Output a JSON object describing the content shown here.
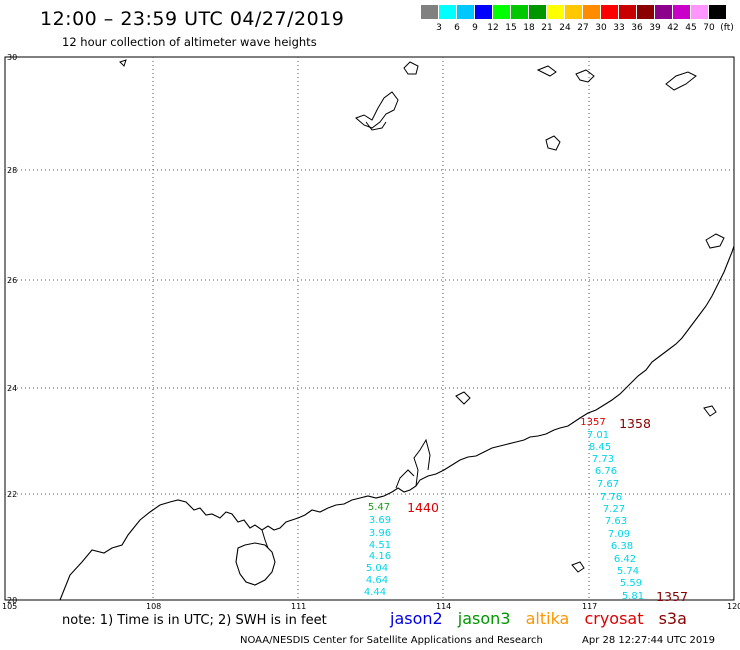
{
  "header": {
    "title": "12:00 – 23:59 UTC 04/27/2019",
    "subtitle": "12 hour collection of altimeter wave heights"
  },
  "scale": {
    "labels": [
      "3",
      "6",
      "9",
      "12",
      "15",
      "18",
      "21",
      "24",
      "27",
      "30",
      "33",
      "36",
      "39",
      "42",
      "45",
      "70",
      "(ft)"
    ],
    "colors": [
      "#808080",
      "#00ffff",
      "#00c8ff",
      "#0000ff",
      "#00ff00",
      "#00c800",
      "#009600",
      "#ffff00",
      "#ffc800",
      "#ff8c00",
      "#ff0000",
      "#c80000",
      "#8b0000",
      "#8c008c",
      "#c800c8",
      "#ff96ff",
      "#000000"
    ]
  },
  "axes": {
    "lat_labels": [
      "30",
      "28",
      "26",
      "24",
      "22",
      "20"
    ],
    "lon_labels": [
      "105",
      "108",
      "111",
      "114",
      "117",
      "120"
    ]
  },
  "tracks": {
    "west": {
      "time_green": "5.47",
      "time_red": "1440",
      "values": [
        "3.69",
        "3.96",
        "4.51",
        "4.16",
        "5.04",
        "4.64",
        "4.44"
      ]
    },
    "east": {
      "time_red_small": "1357",
      "time_dark": "1358",
      "values": [
        "7.01",
        "8.45",
        "7.73",
        "6.76",
        "7.67",
        "7.76",
        "7.27",
        "7.63",
        "7.09",
        "6.38",
        "6.42",
        "5.74",
        "5.59",
        "5.81"
      ],
      "time_dark_bottom": "1357"
    }
  },
  "legend": {
    "note": "note: 1) Time is in UTC; 2) SWH is in feet",
    "satellites": [
      {
        "name": "jason2",
        "color": "#0000e0"
      },
      {
        "name": "jason3",
        "color": "#009600"
      },
      {
        "name": "altika",
        "color": "#ff9600"
      },
      {
        "name": "cryosat",
        "color": "#e00000"
      },
      {
        "name": "s3a",
        "color": "#880000"
      }
    ]
  },
  "footer": {
    "credit": "NOAA/NESDIS Center for Satellite Applications and Research",
    "timestamp": "Apr 28 12:27:44 UTC 2019"
  }
}
